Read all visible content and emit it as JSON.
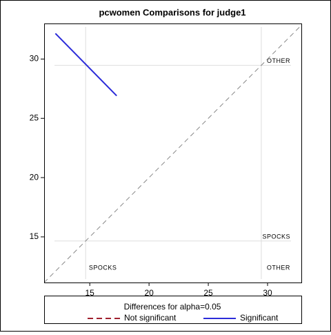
{
  "chart_data": {
    "type": "diffogram",
    "title": "pcwomen Comparisons for judge1",
    "xlim": [
      11.15,
      32.85
    ],
    "ylim": [
      11.15,
      33.0
    ],
    "xticks": [
      15,
      20,
      25,
      30
    ],
    "yticks": [
      15,
      20,
      25,
      30
    ],
    "reference_lines": [
      {
        "label": "SPOCKS",
        "value": 14.65
      },
      {
        "label": "OTHER",
        "value": 29.47
      }
    ],
    "series": [
      {
        "color": "#2b2bd9",
        "x": [
          12.1,
          17.27
        ],
        "y": [
          32.16,
          26.9
        ]
      }
    ],
    "legend": {
      "title": "Differences for alpha=0.05",
      "items": [
        {
          "name": "Not significant",
          "color": "#a0202e",
          "dash": true
        },
        {
          "name": "Significant",
          "color": "#2b2bd9",
          "dash": false
        }
      ]
    }
  }
}
